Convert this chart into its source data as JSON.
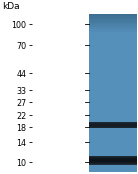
{
  "kda_ticks": [
    100,
    70,
    44,
    33,
    27,
    22,
    18,
    14,
    10
  ],
  "kda_label": "kDa",
  "lane_color_top": "#3d6e90",
  "lane_color_mid": "#5590bb",
  "lane_color_bot": "#5090b8",
  "band1_kda": 18.5,
  "band1_spread": 0.055,
  "band1_peak": 0.62,
  "band2_kda": 10.3,
  "band2_spread": 0.07,
  "band2_peak": 0.97,
  "ymin": 8.5,
  "ymax": 118,
  "figure_bg": "#ffffff",
  "label_fontsize": 5.8,
  "kdatitle_fontsize": 6.5
}
